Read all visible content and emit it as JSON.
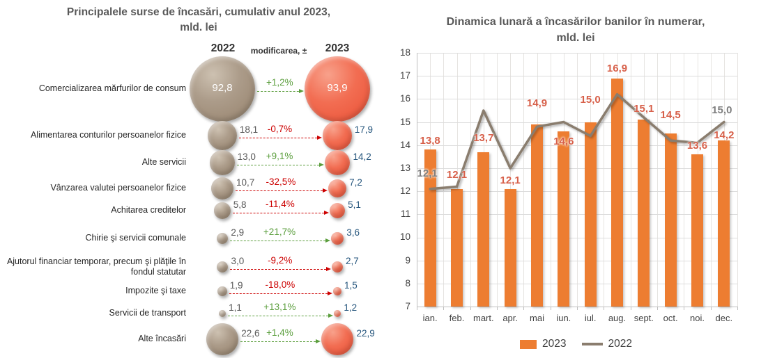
{
  "left": {
    "title_line1": "Principalele surse de încasări, cumulativ anul 2023,",
    "title_line2": "mld. lei",
    "col_2022": "2022",
    "col_change": "modificarea, ±",
    "col_2023": "2023"
  },
  "right": {
    "title_line1": "Dinamica lunară a încasărilor banilor în numerar,",
    "title_line2": "mld. lei"
  },
  "colors": {
    "bar_2023": "#ED7D31",
    "line_2022": "#8a7d6e",
    "bar_label": "#d7604a",
    "line_label": "#7f7f7f",
    "bubble_2022": "#a59583",
    "bubble_2023": "#f1684e",
    "value_2022": "#595959",
    "value_2023": "#26567d",
    "positive_change": "#5b9e3d",
    "negative_change": "#cc0000",
    "title_text": "#595959",
    "axis_text": "#404040",
    "gridline": "#dcdcdc",
    "axis_line": "#bfbfbf"
  },
  "chart_data": [
    {
      "type": "bubble-table",
      "title": "Principalele surse de încasări, cumulativ anul 2023, mld. lei",
      "columns": [
        "2022",
        "modificarea, ±",
        "2023"
      ],
      "rows": [
        {
          "label": "Comercializarea mărfurilor de consum",
          "y2022": 92.8,
          "change": "+1,2%",
          "y2023": 93.9
        },
        {
          "label": "Alimentarea conturilor persoanelor fizice",
          "y2022": 18.1,
          "change": "-0,7%",
          "y2023": 17.9
        },
        {
          "label": "Alte servicii",
          "y2022": 13.0,
          "change": "+9,1%",
          "y2023": 14.2
        },
        {
          "label": "Vânzarea valutei persoanelor fizice",
          "y2022": 10.7,
          "change": "-32,5%",
          "y2023": 7.2
        },
        {
          "label": "Achitarea creditelor",
          "y2022": 5.8,
          "change": "-11,4%",
          "y2023": 5.1
        },
        {
          "label": "Chirie şi servicii comunale",
          "y2022": 2.9,
          "change": "+21,7%",
          "y2023": 3.6
        },
        {
          "label": "Ajutorul financiar temporar, precum şi plăţile în fondul statutar",
          "y2022": 3.0,
          "change": "-9,2%",
          "y2023": 2.7
        },
        {
          "label": "Impozite şi taxe",
          "y2022": 1.9,
          "change": "-18,0%",
          "y2023": 1.5
        },
        {
          "label": "Servicii de transport",
          "y2022": 1.1,
          "change": "+13,1%",
          "y2023": 1.2
        },
        {
          "label": "Alte încasări",
          "y2022": 22.6,
          "change": "+1,4%",
          "y2023": 22.9
        }
      ]
    },
    {
      "type": "bar+line",
      "title": "Dinamica lunară a încasărilor banilor în numerar, mld. lei",
      "categories": [
        "ian.",
        "feb.",
        "mart.",
        "apr.",
        "mai",
        "iun.",
        "iul.",
        "aug.",
        "sept.",
        "oct.",
        "noi.",
        "dec."
      ],
      "series": [
        {
          "name": "2023",
          "type": "bar",
          "values": [
            13.8,
            12.1,
            13.7,
            12.1,
            14.9,
            14.6,
            15.0,
            16.9,
            15.1,
            14.5,
            13.6,
            14.2
          ]
        },
        {
          "name": "2022",
          "type": "line",
          "values": [
            12.1,
            12.2,
            15.5,
            13.0,
            14.8,
            15.0,
            14.4,
            16.2,
            15.2,
            14.2,
            14.1,
            15.0
          ],
          "labeled_points": [
            0,
            11
          ]
        }
      ],
      "ylim": [
        7,
        18
      ],
      "ytick_step": 1,
      "grid": true,
      "legend_position": "bottom"
    }
  ]
}
